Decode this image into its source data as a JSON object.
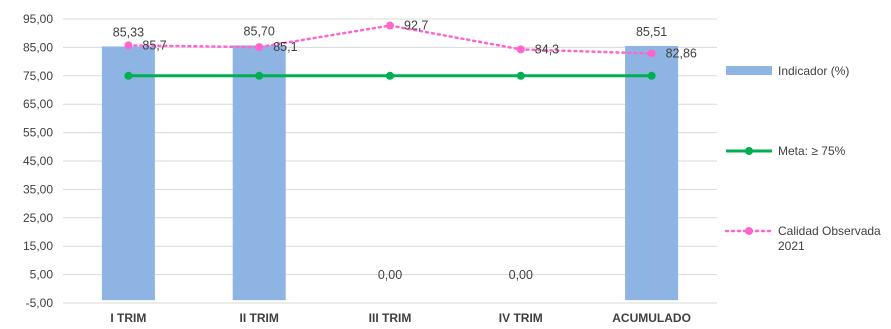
{
  "chart_data": {
    "type": "bar",
    "categories": [
      "I TRIM",
      "II TRIM",
      "III TRIM",
      "IV TRIM",
      "ACUMULADO"
    ],
    "ylim": [
      -5,
      95
    ],
    "yticks": [
      "-5,00",
      "5,00",
      "15,00",
      "25,00",
      "35,00",
      "45,00",
      "55,00",
      "65,00",
      "75,00",
      "85,00",
      "95,00"
    ],
    "ytick_values": [
      -5,
      5,
      15,
      25,
      35,
      45,
      55,
      65,
      75,
      85,
      95
    ],
    "grid": true,
    "legend_position": "right",
    "series": [
      {
        "name": "Indicador (%)",
        "kind": "bar",
        "color": "#8eb4e3",
        "values": [
          85.33,
          85.7,
          0,
          0,
          85.51
        ],
        "labels": [
          "85,33",
          "85,70",
          "0,00",
          "0,00",
          "85,51"
        ]
      },
      {
        "name": "Meta: ≥ 75%",
        "kind": "line",
        "color": "#00b050",
        "values": [
          75,
          75,
          75,
          75,
          75
        ]
      },
      {
        "name": "Calidad Observada 2021",
        "kind": "dotted-line",
        "color": "#ff66cc",
        "values": [
          85.7,
          85.1,
          92.7,
          84.3,
          82.86
        ],
        "labels": [
          "85,7",
          "85,1",
          "92,7",
          "84,3",
          "82,86"
        ]
      }
    ]
  }
}
